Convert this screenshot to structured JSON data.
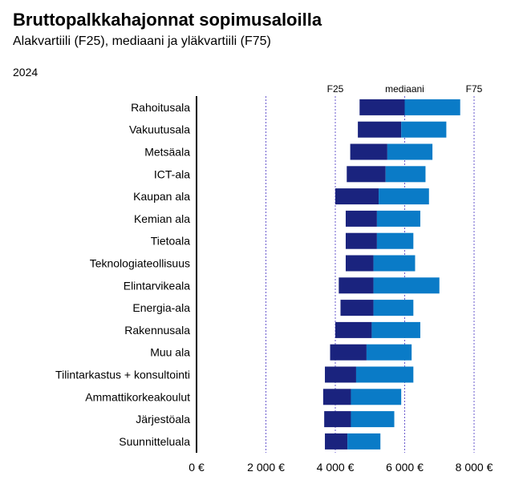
{
  "header": {
    "title": "Bruttopalkkahajonnat sopimusaloilla",
    "subtitle": "Alakvartiili (F25), mediaani ja yläkvartiili (F75)",
    "year": "2024"
  },
  "colors": {
    "lower_segment": "#1a237e",
    "upper_segment": "#0a7bc7",
    "marker_line": "#6a5acd",
    "axis": "#000000"
  },
  "chart_data": {
    "type": "bar",
    "orientation": "horizontal",
    "stacked_range": true,
    "title": "Bruttopalkkahajonnat sopimusaloilla",
    "subtitle": "Alakvartiili (F25), mediaani ja yläkvartiili (F75)",
    "xlim": [
      0,
      8000
    ],
    "x_ticks": [
      0,
      2000,
      4000,
      6000,
      8000
    ],
    "x_tick_labels": [
      "0 €",
      "2 000 €",
      "4 000 €",
      "6 000 €",
      "8 000 €"
    ],
    "grid": "vertical dotted at 2000, 4000, 6000, 8000",
    "reference_markers": [
      {
        "label": "F25",
        "value": 4000
      },
      {
        "label": "mediaani",
        "value": 6000
      },
      {
        "label": "F75",
        "value": 8000
      }
    ],
    "categories": [
      "Rahoitusala",
      "Vakuutusala",
      "Metsäala",
      "ICT-ala",
      "Kaupan ala",
      "Kemian ala",
      "Tietoala",
      "Teknologiateollisuus",
      "Elintarvikeala",
      "Energia-ala",
      "Rakennusala",
      "Muu ala",
      "Tilintarkastus + konsultointi",
      "Ammattikorkeakoulut",
      "Järjestöala",
      "Suunnitteluala"
    ],
    "series": [
      {
        "name": "F25",
        "values": [
          4700,
          4650,
          4430,
          4330,
          4000,
          4300,
          4300,
          4300,
          4100,
          4150,
          4000,
          3850,
          3700,
          3650,
          3680,
          3700
        ]
      },
      {
        "name": "mediaani",
        "values": [
          6000,
          5900,
          5500,
          5450,
          5250,
          5200,
          5200,
          5100,
          5100,
          5100,
          5050,
          4900,
          4600,
          4450,
          4450,
          4350
        ]
      },
      {
        "name": "F75",
        "values": [
          7600,
          7200,
          6800,
          6600,
          6700,
          6450,
          6250,
          6300,
          7000,
          6250,
          6450,
          6200,
          6250,
          5900,
          5700,
          5300
        ]
      }
    ]
  }
}
